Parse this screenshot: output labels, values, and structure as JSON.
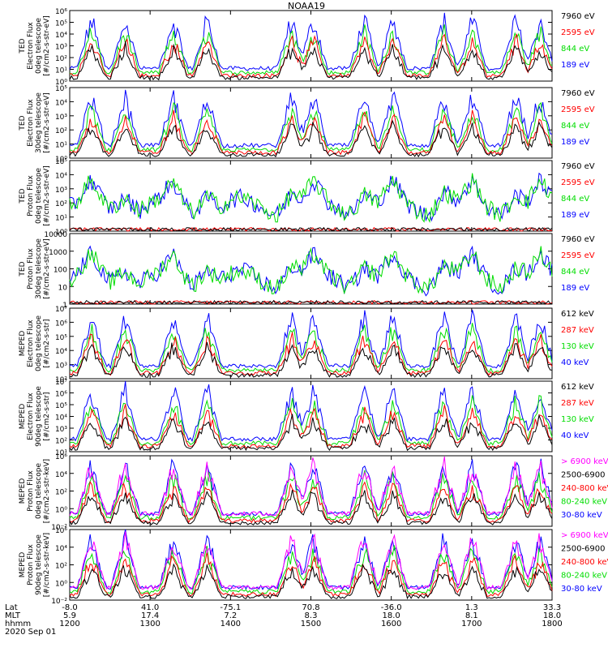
{
  "title": "NOAA19",
  "chart_data": {
    "type": "line",
    "title": "NOAA19",
    "x_axis": {
      "rows": [
        {
          "label": "Lat",
          "values": [
            "-8.0",
            "41.0",
            "-75.1",
            "70.8",
            "-36.0",
            "1.3",
            "33.3"
          ]
        },
        {
          "label": "MLT",
          "values": [
            "5.9",
            "17.4",
            "7.2",
            "8.3",
            "18.0",
            "8.1",
            "18.0"
          ]
        },
        {
          "label": "hhmm",
          "values": [
            "1200",
            "1300",
            "1400",
            "1500",
            "1600",
            "1700",
            "1800"
          ]
        }
      ],
      "date": "2020 Sep 01"
    },
    "panels": [
      {
        "ylabel": [
          "TED",
          "Electron Flux",
          "0deg telescope",
          "[#/cm2-s-str-eV]"
        ],
        "scale": "log",
        "ylim": [
          1,
          1000000
        ],
        "yticks": [
          "10⁰",
          "10¹",
          "10²",
          "10³",
          "10⁴",
          "10⁵",
          "10⁶"
        ],
        "legend": [
          {
            "label": "7960 eV",
            "color": "#000000"
          },
          {
            "label": "2595 eV",
            "color": "#ff0000"
          },
          {
            "label": "844 eV",
            "color": "#00dd00"
          },
          {
            "label": "189 eV",
            "color": "#0000ff"
          }
        ]
      },
      {
        "ylabel": [
          "TED",
          "Electron Flux",
          "30deg telescope",
          "[#/cm2-s-str-eV]"
        ],
        "scale": "log",
        "ylim": [
          1,
          100000
        ],
        "yticks": [
          "10⁰",
          "10¹",
          "10²",
          "10³",
          "10⁴",
          "10⁵"
        ],
        "legend": [
          {
            "label": "7960 eV",
            "color": "#000000"
          },
          {
            "label": "2595 eV",
            "color": "#ff0000"
          },
          {
            "label": "844 eV",
            "color": "#00dd00"
          },
          {
            "label": "189 eV",
            "color": "#0000ff"
          }
        ]
      },
      {
        "ylabel": [
          "TED",
          "Proton Flux",
          "0deg telescope",
          "[#/cm2-s-str-eV]"
        ],
        "scale": "log",
        "ylim": [
          1,
          100000
        ],
        "yticks": [
          "10⁰",
          "10¹",
          "10²",
          "10³",
          "10⁴",
          "10⁵"
        ],
        "legend": [
          {
            "label": "7960 eV",
            "color": "#000000"
          },
          {
            "label": "2595 eV",
            "color": "#ff0000"
          },
          {
            "label": "844 eV",
            "color": "#00dd00"
          },
          {
            "label": "189 eV",
            "color": "#0000ff"
          }
        ]
      },
      {
        "ylabel": [
          "TED",
          "Proton Flux",
          "30deg telescope",
          "[#/cm2-s-str-eV]"
        ],
        "scale": "log",
        "ylim": [
          1,
          10000
        ],
        "yticks": [
          "1",
          "10",
          "100",
          "1000",
          "10000"
        ],
        "legend": [
          {
            "label": "7960 eV",
            "color": "#000000"
          },
          {
            "label": "2595 eV",
            "color": "#ff0000"
          },
          {
            "label": "844 eV",
            "color": "#00dd00"
          },
          {
            "label": "189 eV",
            "color": "#0000ff"
          }
        ]
      },
      {
        "ylabel": [
          "MEPED",
          "Electron Flux",
          "0deg telescope",
          "[#/cm2-s-str]"
        ],
        "scale": "log",
        "ylim": [
          100,
          10000000
        ],
        "yticks": [
          "10²",
          "10³",
          "10⁴",
          "10⁵",
          "10⁶",
          "10⁷"
        ],
        "legend": [
          {
            "label": "612 keV",
            "color": "#000000"
          },
          {
            "label": "287 keV",
            "color": "#ff0000"
          },
          {
            "label": "130 keV",
            "color": "#00dd00"
          },
          {
            "label": "40 keV",
            "color": "#0000ff"
          }
        ]
      },
      {
        "ylabel": [
          "MEPED",
          "Electron Flux",
          "90deg telescope",
          "[#/cm2-s-str]"
        ],
        "scale": "log",
        "ylim": [
          10,
          10000000
        ],
        "yticks": [
          "10¹",
          "10²",
          "10³",
          "10⁴",
          "10⁵",
          "10⁶",
          "10⁷"
        ],
        "legend": [
          {
            "label": "612 keV",
            "color": "#000000"
          },
          {
            "label": "287 keV",
            "color": "#ff0000"
          },
          {
            "label": "130 keV",
            "color": "#00dd00"
          },
          {
            "label": "40 keV",
            "color": "#0000ff"
          }
        ]
      },
      {
        "ylabel": [
          "MEPED",
          "Proton Flux",
          "0deg telescope",
          "[#/cm2-s-str-keV]"
        ],
        "scale": "log",
        "ylim": [
          0.01,
          1000000
        ],
        "yticks": [
          "10⁻²",
          "10⁰",
          "10²",
          "10⁴",
          "10⁶"
        ],
        "legend": [
          {
            "label": "> 6900 keV",
            "color": "#ff00ff"
          },
          {
            "label": "2500-6900",
            "color": "#000000"
          },
          {
            "label": "240-800 keV",
            "color": "#ff0000"
          },
          {
            "label": "80-240 keV",
            "color": "#00dd00"
          },
          {
            "label": "30-80 keV",
            "color": "#0000ff"
          }
        ]
      },
      {
        "ylabel": [
          "MEPED",
          "Proton Flux",
          "90deg telescope",
          "[#/cm2-s-str-keV]"
        ],
        "scale": "log",
        "ylim": [
          0.01,
          1000000
        ],
        "yticks": [
          "10⁻²",
          "10⁰",
          "10²",
          "10⁴",
          "10⁶"
        ],
        "legend": [
          {
            "label": "> 6900 keV",
            "color": "#ff00ff"
          },
          {
            "label": "2500-6900",
            "color": "#000000"
          },
          {
            "label": "240-800 keV",
            "color": "#ff0000"
          },
          {
            "label": "80-240 keV",
            "color": "#00dd00"
          },
          {
            "label": "30-80 keV",
            "color": "#0000ff"
          }
        ]
      }
    ]
  }
}
